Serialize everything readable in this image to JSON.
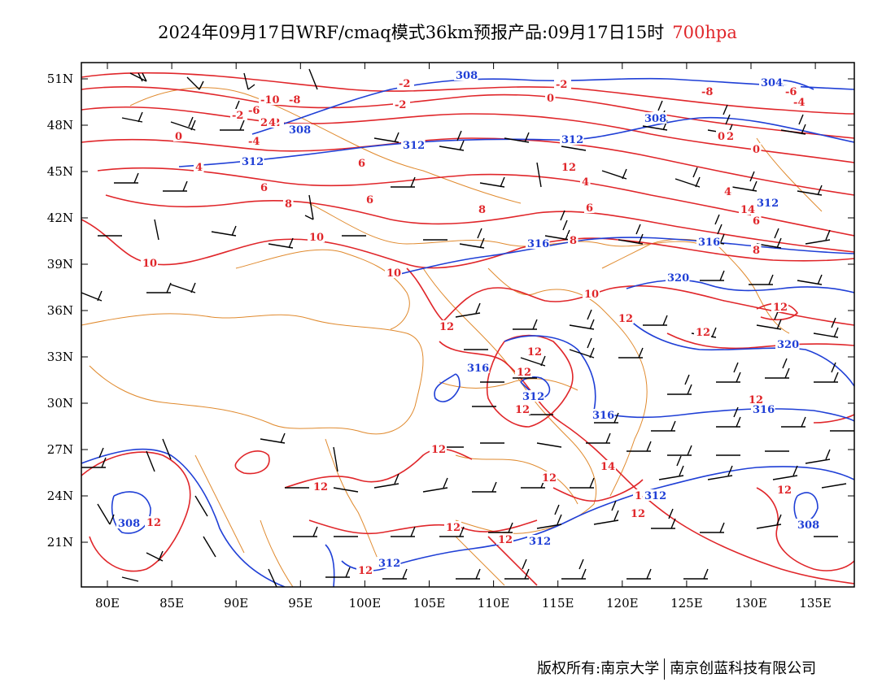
{
  "title": {
    "main": "2024年09月17日WRF/cmaq模式36km预报产品:09月17日15时",
    "level": "700hpa"
  },
  "footer": {
    "copyright": "版权所有:南京大学",
    "company": "南京创蓝科技有限公司"
  },
  "axes": {
    "lat_labels": [
      "51N",
      "48N",
      "45N",
      "42N",
      "39N",
      "36N",
      "33N",
      "30N",
      "27N",
      "24N",
      "21N"
    ],
    "lon_labels": [
      "80E",
      "85E",
      "90E",
      "95E",
      "100E",
      "105E",
      "110E",
      "115E",
      "120E",
      "125E",
      "130E",
      "135E"
    ]
  },
  "colors": {
    "temperature": "#e0262a",
    "height": "#1f3fd6",
    "boundary": "#e08a2e",
    "wind": "#000000"
  },
  "temp_labels": [
    "-10",
    "-8",
    "-6",
    "-4",
    "-2",
    "-2",
    "-2",
    "-2",
    "-2",
    "0",
    "0",
    "0",
    "0",
    "2",
    "2",
    "2",
    "4",
    "4",
    "4",
    "4",
    "6",
    "6",
    "6",
    "6",
    "6",
    "8",
    "8",
    "8",
    "8",
    "10",
    "10",
    "10",
    "10",
    "12",
    "12",
    "12",
    "12",
    "12",
    "12",
    "12",
    "12",
    "12",
    "12",
    "12",
    "12",
    "12",
    "12",
    "12",
    "12",
    "12",
    "12",
    "14",
    "14",
    "14",
    "-6",
    "-4",
    "-8",
    "4"
  ],
  "height_labels": [
    "308",
    "308",
    "308",
    "308",
    "308",
    "312",
    "312",
    "312",
    "312",
    "316",
    "316",
    "316",
    "316",
    "316",
    "320",
    "320",
    "312",
    "312",
    "312",
    "312",
    "308",
    "304"
  ]
}
